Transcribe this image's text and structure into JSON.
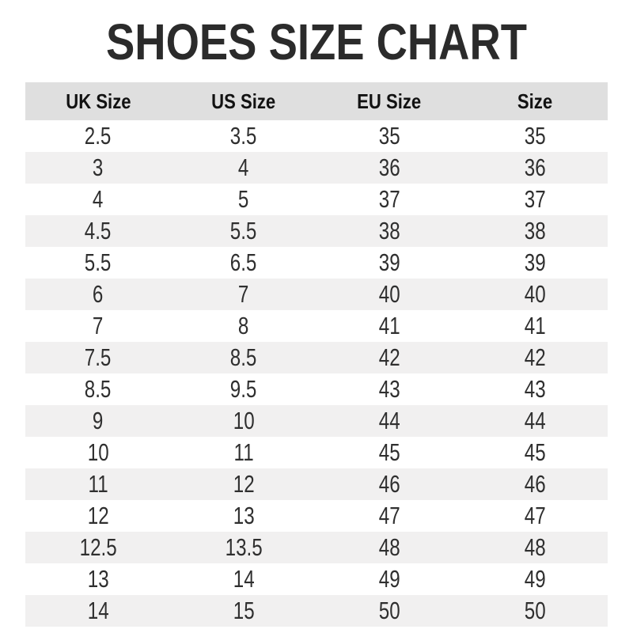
{
  "title": "SHOES SIZE CHART",
  "chart_data": {
    "type": "table",
    "title": "SHOES SIZE CHART",
    "columns": [
      "UK Size",
      "US Size",
      "EU Size",
      "Size"
    ],
    "rows": [
      [
        "2.5",
        "3.5",
        "35",
        "35"
      ],
      [
        "3",
        "4",
        "36",
        "36"
      ],
      [
        "4",
        "5",
        "37",
        "37"
      ],
      [
        "4.5",
        "5.5",
        "38",
        "38"
      ],
      [
        "5.5",
        "6.5",
        "39",
        "39"
      ],
      [
        "6",
        "7",
        "40",
        "40"
      ],
      [
        "7",
        "8",
        "41",
        "41"
      ],
      [
        "7.5",
        "8.5",
        "42",
        "42"
      ],
      [
        "8.5",
        "9.5",
        "43",
        "43"
      ],
      [
        "9",
        "10",
        "44",
        "44"
      ],
      [
        "10",
        "11",
        "45",
        "45"
      ],
      [
        "11",
        "12",
        "46",
        "46"
      ],
      [
        "12",
        "13",
        "47",
        "47"
      ],
      [
        "12.5",
        "13.5",
        "48",
        "48"
      ],
      [
        "13",
        "14",
        "49",
        "49"
      ],
      [
        "14",
        "15",
        "50",
        "50"
      ]
    ],
    "layout": {
      "striped": true,
      "stripe_pattern": "even rows white, odd rows gray",
      "columns_equal_width": true,
      "text_align": "center"
    }
  },
  "colors": {
    "background": "#ffffff",
    "header_bg": "#dfdfdf",
    "stripe_bg": "#f1f0f0",
    "title_text": "#2b2b2b",
    "header_text": "#121212",
    "cell_text": "#2f2f2f"
  }
}
